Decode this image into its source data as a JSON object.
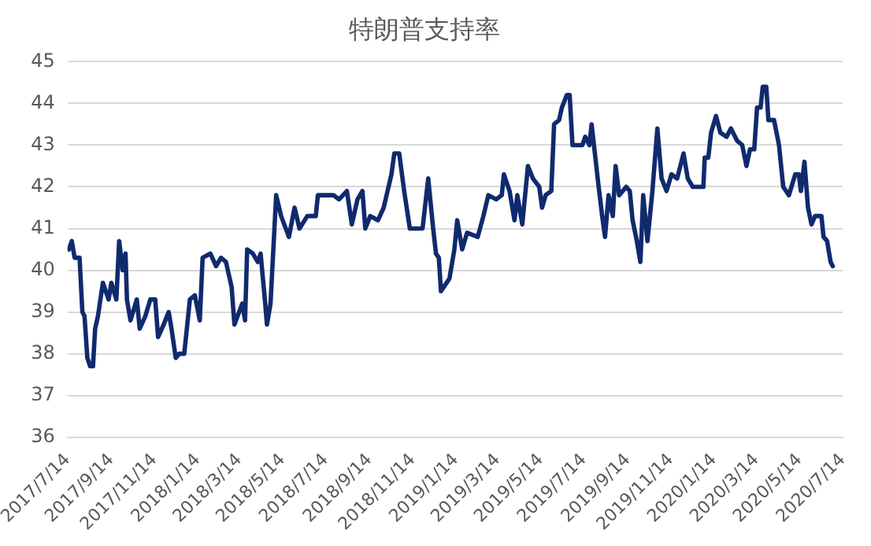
{
  "chart_data": {
    "type": "line",
    "title": "特朗普支持率",
    "xlim": [
      "2017-07-14",
      "2020-07-14"
    ],
    "ylim": [
      36,
      45
    ],
    "yticks": [
      36,
      37,
      38,
      39,
      40,
      41,
      42,
      43,
      44,
      45
    ],
    "xticks": [
      {
        "value": "2017-07-14",
        "label": "2017/7/14"
      },
      {
        "value": "2017-09-14",
        "label": "2017/9/14"
      },
      {
        "value": "2017-11-14",
        "label": "2017/11/14"
      },
      {
        "value": "2018-01-14",
        "label": "2018/1/14"
      },
      {
        "value": "2018-03-14",
        "label": "2018/3/14"
      },
      {
        "value": "2018-05-14",
        "label": "2018/5/14"
      },
      {
        "value": "2018-07-14",
        "label": "2018/7/14"
      },
      {
        "value": "2018-09-14",
        "label": "2018/9/14"
      },
      {
        "value": "2018-11-14",
        "label": "2018/11/14"
      },
      {
        "value": "2019-01-14",
        "label": "2019/1/14"
      },
      {
        "value": "2019-03-14",
        "label": "2019/3/14"
      },
      {
        "value": "2019-05-14",
        "label": "2019/5/14"
      },
      {
        "value": "2019-07-14",
        "label": "2019/7/14"
      },
      {
        "value": "2019-09-14",
        "label": "2019/9/14"
      },
      {
        "value": "2019-11-14",
        "label": "2019/11/14"
      },
      {
        "value": "2020-01-14",
        "label": "2020/1/14"
      },
      {
        "value": "2020-03-14",
        "label": "2020/3/14"
      },
      {
        "value": "2020-05-14",
        "label": "2020/5/14"
      },
      {
        "value": "2020-07-14",
        "label": "2020/7/14"
      }
    ],
    "grid": "y",
    "legend": false,
    "marker": "none",
    "line_style": "solid",
    "series": [
      {
        "color": "#102a6e",
        "x": [
          "2017-07-16",
          "2017-07-20",
          "2017-07-24",
          "2017-07-31",
          "2017-08-04",
          "2017-08-07",
          "2017-08-11",
          "2017-08-15",
          "2017-08-19",
          "2017-08-22",
          "2017-08-26",
          "2017-09-02",
          "2017-09-10",
          "2017-09-14",
          "2017-09-21",
          "2017-09-25",
          "2017-09-30",
          "2017-10-04",
          "2017-10-06",
          "2017-10-11",
          "2017-10-20",
          "2017-10-24",
          "2017-11-01",
          "2017-11-08",
          "2017-11-15",
          "2017-11-19",
          "2017-11-27",
          "2017-12-04",
          "2017-12-08",
          "2017-12-14",
          "2017-12-19",
          "2017-12-26",
          "2018-01-03",
          "2018-01-10",
          "2018-01-17",
          "2018-01-21",
          "2018-02-01",
          "2018-02-09",
          "2018-02-16",
          "2018-02-23",
          "2018-03-03",
          "2018-03-07",
          "2018-03-18",
          "2018-03-22",
          "2018-03-25",
          "2018-04-02",
          "2018-04-09",
          "2018-04-13",
          "2018-04-19",
          "2018-04-22",
          "2018-04-27",
          "2018-05-05",
          "2018-05-12",
          "2018-05-23",
          "2018-05-31",
          "2018-06-07",
          "2018-06-18",
          "2018-06-30",
          "2018-07-03",
          "2018-07-14",
          "2018-07-25",
          "2018-08-02",
          "2018-08-13",
          "2018-08-20",
          "2018-08-28",
          "2018-09-04",
          "2018-09-08",
          "2018-09-15",
          "2018-09-26",
          "2018-10-04",
          "2018-10-15",
          "2018-10-19",
          "2018-10-26",
          "2018-11-02",
          "2018-11-10",
          "2018-11-28",
          "2018-12-06",
          "2018-12-13",
          "2018-12-17",
          "2018-12-21",
          "2018-12-24",
          "2019-01-05",
          "2019-01-12",
          "2019-01-16",
          "2019-01-23",
          "2019-01-30",
          "2019-02-14",
          "2019-02-22",
          "2019-03-01",
          "2019-03-12",
          "2019-03-20",
          "2019-03-23",
          "2019-03-31",
          "2019-04-07",
          "2019-04-11",
          "2019-04-18",
          "2019-04-26",
          "2019-05-03",
          "2019-05-12",
          "2019-05-16",
          "2019-05-21",
          "2019-05-29",
          "2019-06-02",
          "2019-06-09",
          "2019-06-13",
          "2019-06-20",
          "2019-06-24",
          "2019-06-28",
          "2019-07-12",
          "2019-07-16",
          "2019-07-22",
          "2019-07-25",
          "2019-07-29",
          "2019-08-04",
          "2019-08-09",
          "2019-08-13",
          "2019-08-18",
          "2019-08-24",
          "2019-08-28",
          "2019-09-02",
          "2019-09-12",
          "2019-09-17",
          "2019-09-21",
          "2019-09-27",
          "2019-10-02",
          "2019-10-06",
          "2019-10-12",
          "2019-10-19",
          "2019-10-26",
          "2019-11-01",
          "2019-11-08",
          "2019-11-15",
          "2019-11-23",
          "2019-12-02",
          "2019-12-08",
          "2019-12-15",
          "2019-12-30",
          "2020-01-01",
          "2020-01-06",
          "2020-01-10",
          "2020-01-17",
          "2020-01-23",
          "2020-02-01",
          "2020-02-07",
          "2020-02-16",
          "2020-02-23",
          "2020-02-29",
          "2020-03-05",
          "2020-03-11",
          "2020-03-15",
          "2020-03-20",
          "2020-03-23",
          "2020-03-28",
          "2020-03-31",
          "2020-04-08",
          "2020-04-15",
          "2020-04-21",
          "2020-04-29",
          "2020-05-08",
          "2020-05-13",
          "2020-05-16",
          "2020-05-21",
          "2020-05-26",
          "2020-05-31",
          "2020-06-05",
          "2020-06-14",
          "2020-06-17",
          "2020-06-22",
          "2020-06-27",
          "2020-06-30"
        ],
        "values": [
          40.5,
          40.7,
          40.3,
          40.3,
          39.0,
          38.9,
          37.9,
          37.7,
          37.7,
          38.6,
          38.9,
          39.7,
          39.3,
          39.7,
          39.3,
          40.7,
          40.0,
          40.4,
          39.3,
          38.8,
          39.3,
          38.6,
          38.9,
          39.3,
          39.3,
          38.4,
          38.7,
          39.0,
          38.6,
          37.9,
          38.0,
          38.0,
          39.3,
          39.4,
          38.8,
          40.3,
          40.4,
          40.1,
          40.3,
          40.2,
          39.6,
          38.7,
          39.2,
          38.8,
          40.5,
          40.4,
          40.2,
          40.4,
          39.3,
          38.7,
          39.2,
          41.8,
          41.3,
          40.8,
          41.5,
          41.0,
          41.3,
          41.3,
          41.8,
          41.8,
          41.8,
          41.7,
          41.9,
          41.1,
          41.7,
          41.9,
          41.0,
          41.3,
          41.2,
          41.5,
          42.3,
          42.8,
          42.8,
          41.9,
          41.0,
          41.0,
          42.2,
          41.0,
          40.4,
          40.3,
          39.5,
          39.8,
          40.5,
          41.2,
          40.5,
          40.9,
          40.8,
          41.3,
          41.8,
          41.7,
          41.8,
          42.3,
          41.9,
          41.2,
          41.8,
          41.1,
          42.5,
          42.2,
          42.0,
          41.5,
          41.8,
          41.9,
          43.5,
          43.6,
          43.9,
          44.2,
          44.2,
          43.0,
          43.0,
          43.2,
          43.0,
          43.5,
          42.9,
          42.0,
          41.3,
          40.8,
          41.8,
          41.3,
          42.5,
          41.8,
          42.0,
          41.9,
          41.2,
          40.7,
          40.2,
          41.8,
          40.7,
          41.9,
          43.4,
          42.2,
          41.9,
          42.3,
          42.2,
          42.8,
          42.2,
          42.0,
          42.0,
          42.7,
          42.7,
          43.3,
          43.7,
          43.3,
          43.2,
          43.4,
          43.1,
          43.0,
          42.5,
          42.9,
          42.9,
          43.9,
          43.9,
          44.4,
          44.4,
          43.6,
          43.6,
          43.0,
          42.0,
          41.8,
          42.3,
          42.3,
          41.9,
          42.6,
          41.5,
          41.1,
          41.3,
          41.3,
          40.8,
          40.7,
          40.2,
          40.1
        ]
      }
    ]
  }
}
